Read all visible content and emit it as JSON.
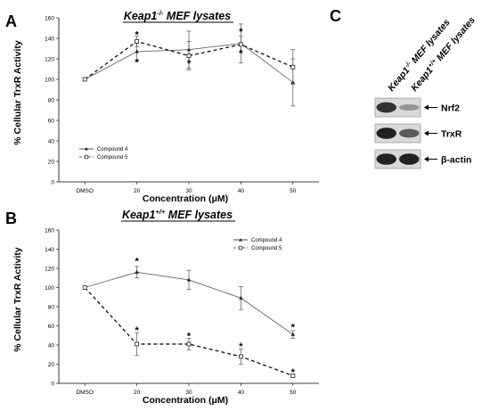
{
  "panel_c": {
    "letter": "C",
    "lanes": [
      {
        "genotype": "Keap1",
        "superscript": "-/-",
        "suffix": " MEF lysates"
      },
      {
        "genotype": "Keap1",
        "superscript": "+/+",
        "suffix": " MEF lysates"
      }
    ],
    "bands": [
      {
        "label": "Nrf2",
        "lane_intensity": [
          0.85,
          0.25
        ]
      },
      {
        "label": "TrxR",
        "lane_intensity": [
          0.95,
          0.6
        ]
      },
      {
        "label": "β-actin",
        "lane_intensity": [
          0.95,
          0.95
        ]
      }
    ],
    "colors": {
      "band": "#1a1a1a",
      "blot_bg": "#d9d9d9"
    }
  },
  "chart_data": [
    {
      "panel": "A",
      "type": "line",
      "title_genotype": "Keap1",
      "title_superscript": "-/-",
      "title_suffix": " MEF lysates",
      "xlabel": "Concentration (μM)",
      "ylabel": "% Cellular TrxR Activity",
      "categories": [
        "DMSO",
        "20",
        "30",
        "40",
        "50"
      ],
      "ylim": [
        0,
        160
      ],
      "yticks": [
        "0",
        "20",
        "40",
        "60",
        "80",
        "100",
        "120",
        "140",
        "160"
      ],
      "legend_position": "bottom-left",
      "series": [
        {
          "name": "Compound 4",
          "style": "solid",
          "marker": "triangle",
          "values": [
            100,
            127,
            129,
            135,
            97
          ],
          "errors": [
            0,
            8,
            18,
            19,
            23
          ]
        },
        {
          "name": "Compound 5",
          "style": "dashed",
          "marker": "square",
          "values": [
            100,
            137,
            123,
            134,
            112
          ],
          "errors": [
            0,
            5,
            14,
            8,
            17
          ]
        }
      ],
      "annotations": [
        {
          "category": "20",
          "y": 144,
          "text": "*"
        },
        {
          "category": "20",
          "y": 117,
          "text": "*"
        },
        {
          "category": "30",
          "y": 116,
          "text": "*"
        },
        {
          "category": "40",
          "y": 147,
          "text": "*"
        },
        {
          "category": "40",
          "y": 126,
          "text": "*"
        }
      ]
    },
    {
      "panel": "B",
      "type": "line",
      "title_genotype": "Keap1",
      "title_superscript": "+/+",
      "title_suffix": " MEF lysates",
      "xlabel": "Concentration (μM)",
      "ylabel": "% Cellular TrxR Activity",
      "categories": [
        "DMSO",
        "20",
        "30",
        "40",
        "50"
      ],
      "ylim": [
        0,
        160
      ],
      "yticks": [
        "0",
        "20",
        "40",
        "60",
        "80",
        "100",
        "120",
        "140",
        "160"
      ],
      "legend_position": "top-right",
      "series": [
        {
          "name": "Compound 4",
          "style": "solid",
          "marker": "triangle",
          "values": [
            100,
            116,
            108,
            89,
            51
          ],
          "errors": [
            0,
            6,
            10,
            12,
            4
          ]
        },
        {
          "name": "Compound 5",
          "style": "dashed",
          "marker": "square",
          "values": [
            100,
            41,
            41,
            28,
            8
          ],
          "errors": [
            0,
            12,
            6,
            8,
            1
          ]
        }
      ],
      "annotations": [
        {
          "category": "20",
          "y": 128,
          "text": "*"
        },
        {
          "category": "20",
          "y": 56,
          "text": "*"
        },
        {
          "category": "30",
          "y": 50,
          "text": "*"
        },
        {
          "category": "40",
          "y": 39,
          "text": "*"
        },
        {
          "category": "50",
          "y": 59,
          "text": "*"
        },
        {
          "category": "50",
          "y": 12,
          "text": "*"
        }
      ]
    }
  ]
}
